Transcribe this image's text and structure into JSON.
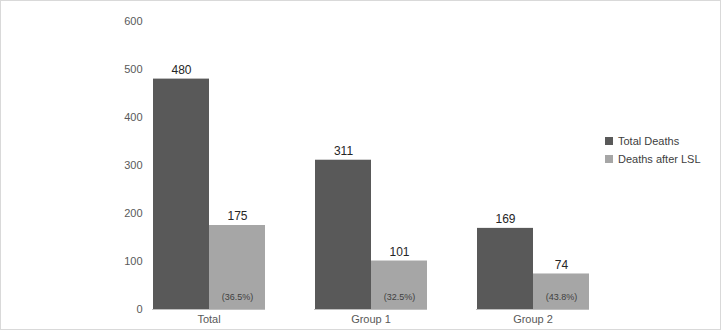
{
  "chart_data": {
    "type": "bar",
    "categories": [
      "Total",
      "Group 1",
      "Group 2"
    ],
    "series": [
      {
        "name": "Total Deaths",
        "color": "#595959",
        "values": [
          480,
          311,
          169
        ]
      },
      {
        "name": "Deaths after LSL",
        "color": "#a6a6a6",
        "values": [
          175,
          101,
          74
        ],
        "annotations": [
          "(36.5%)",
          "(32.5%)",
          "(43.8%)"
        ]
      }
    ],
    "ylim": [
      0,
      600
    ],
    "yticks": [
      0,
      100,
      200,
      300,
      400,
      500,
      600
    ],
    "grid": false,
    "legend": "right",
    "data_labels": true
  }
}
